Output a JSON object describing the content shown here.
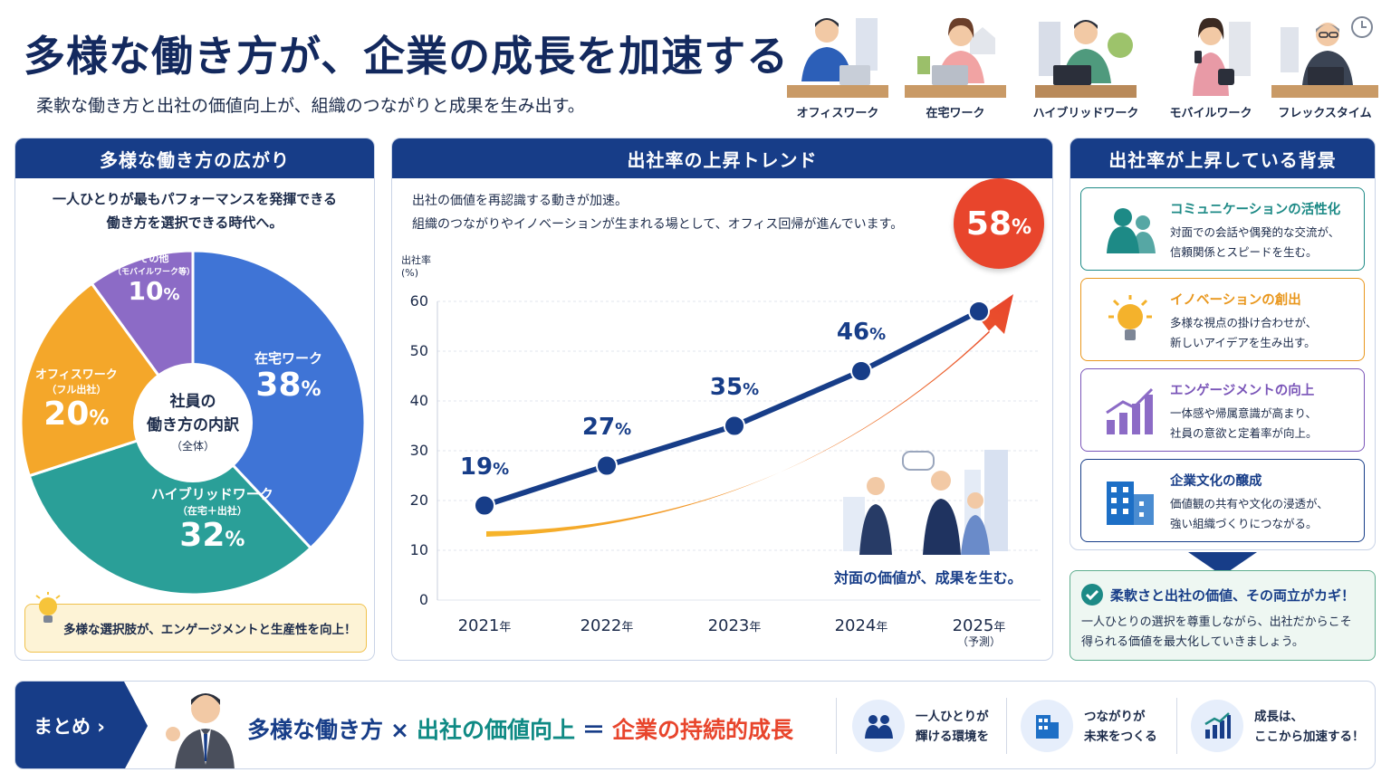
{
  "header": {
    "title": "多様な働き方が、企業の成長を加速する",
    "subtitle": "柔軟な働き方と出社の価値向上が、組織のつながりと成果を生み出す。",
    "work_styles": [
      "オフィスワーク",
      "在宅ワーク",
      "ハイブリッドワーク",
      "モバイルワーク",
      "フレックスタイム"
    ]
  },
  "left_panel": {
    "title": "多様な働き方の広がり",
    "intro_line1": "一人ひとりが最もパフォーマンスを発揮できる",
    "intro_line2": "働き方を選択できる時代へ。",
    "center_line1": "社員の",
    "center_line2": "働き方の内訳",
    "center_line3": "（全体）",
    "tip": "多様な選択肢が、エンゲージメントと生産性を向上！"
  },
  "pie": {
    "type": "pie",
    "slices": [
      {
        "label": "在宅ワーク",
        "value": 38,
        "color": "#3f74d6"
      },
      {
        "label": "ハイブリッドワーク",
        "note": "（在宅＋出社）",
        "value": 32,
        "color": "#2a9f98"
      },
      {
        "label": "オフィスワーク",
        "note": "（フル出社）",
        "value": 20,
        "color": "#f4a72a"
      },
      {
        "label": "その他",
        "note": "（モバイルワーク等）",
        "value": 10,
        "color": "#8c6bc6"
      }
    ],
    "unit": "%"
  },
  "mid_panel": {
    "title": "出社率の上昇トレンド",
    "intro_line1": "出社の価値を再認識する動きが加速。",
    "intro_line2": "組織のつながりやイノベーションが生まれる場として、オフィス回帰が進んでいます。",
    "caption": "対面の価値が、成果を生む。"
  },
  "chart_data": {
    "type": "line",
    "ylabel": "出社率（%）",
    "ylabel_line1": "出社率",
    "ylabel_line2": "(%)",
    "yticks": [
      0,
      10,
      20,
      30,
      40,
      50,
      60
    ],
    "ylim": [
      0,
      60
    ],
    "categories": [
      "2021",
      "2022",
      "2023",
      "2024",
      "2025"
    ],
    "category_suffix": "年",
    "forecast_note": "（予測）",
    "values": [
      19,
      27,
      35,
      46,
      58
    ],
    "unit": "%",
    "series_color": "#173d88",
    "trend_arrow": true
  },
  "right_panel": {
    "title": "出社率が上昇している背景",
    "cards": [
      {
        "title": "コミュニケーションの活性化",
        "line1": "対面での会話や偶発的な交流が、",
        "line2": "信頼関係とスピードを生む。",
        "color": "#1d8a86",
        "icon": "people-icon"
      },
      {
        "title": "イノベーションの創出",
        "line1": "多様な視点の掛け合わせが、",
        "line2": "新しいアイデアを生み出す。",
        "color": "#e9971d",
        "icon": "lightbulb-icon"
      },
      {
        "title": "エンゲージメントの向上",
        "line1": "一体感や帰属意識が高まり、",
        "line2": "社員の意欲と定着率が向上。",
        "color": "#7a55b8",
        "icon": "growth-chart-icon"
      },
      {
        "title": "企業文化の醸成",
        "line1": "価値観の共有や文化の浸透が、",
        "line2": "強い組織づくりにつながる。",
        "color": "#173d88",
        "icon": "building-icon"
      }
    ],
    "key_title": "柔軟さと出社の価値、その両立がカギ！",
    "key_line1": "一人ひとりの選択を尊重しながら、出社だからこそ",
    "key_line2": "得られる価値を最大化していきましょう。"
  },
  "summary": {
    "tag": "まとめ ›",
    "formula_a": "多様な働き方",
    "op1": "×",
    "formula_b": "出社の価値向上",
    "op2": "＝",
    "formula_c": "企業の持続的成長",
    "features": [
      {
        "line1": "一人ひとりが",
        "line2": "輝ける環境を",
        "icon": "people-icon"
      },
      {
        "line1": "つながりが",
        "line2": "未来をつくる",
        "icon": "building-icon"
      },
      {
        "line1": "成長は、",
        "line2": "ここから加速する！",
        "icon": "growth-chart-icon"
      }
    ]
  }
}
